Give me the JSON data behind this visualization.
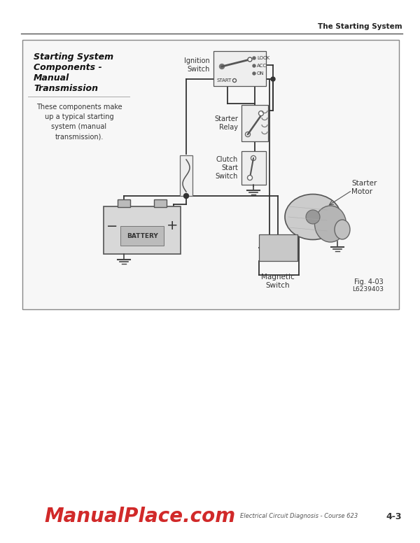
{
  "page_bg": "#ffffff",
  "header_text": "The Starting System",
  "box_title_line1": "Starting System",
  "box_title_line2": "Components -",
  "box_title_line3": "Manual",
  "box_title_line4": "Transmission",
  "desc_text": "These components make\nup a typical starting\nsystem (manual\ntransmission).",
  "fig_label": "Fig. 4-03",
  "fig_code": "L6239403",
  "footer_red_text": "ManualPlace.com",
  "footer_black_text": "Electrical Circuit Diagnosis - Course 623",
  "page_num": "4-3",
  "ignition_label": "Ignition\nSwitch",
  "starter_relay_label": "Starter\nRelay",
  "clutch_label": "Clutch\nStart\nSwitch",
  "starter_motor_label": "Starter\nMotor",
  "magnetic_label": "Magnetic\nSwitch",
  "lock_labels": [
    "LOCK",
    "ACC",
    "ON"
  ]
}
